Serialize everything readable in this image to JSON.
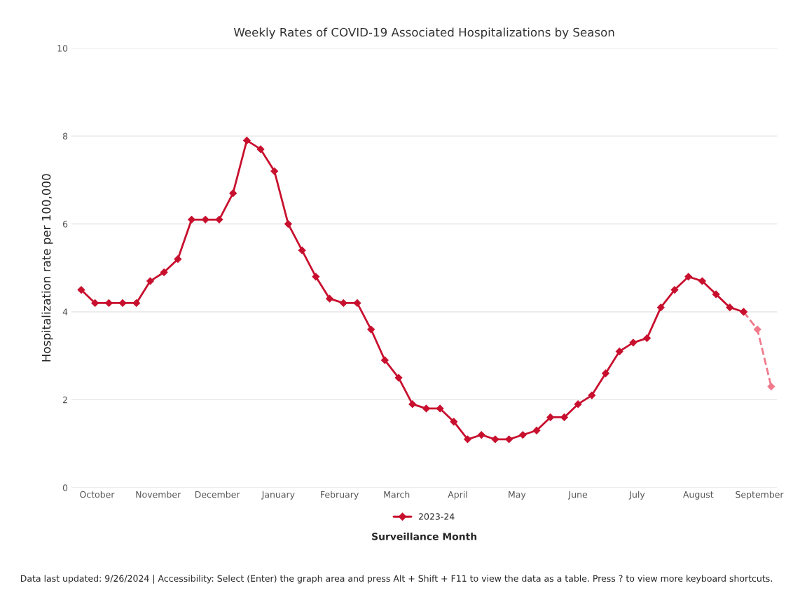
{
  "chart_data": {
    "type": "line",
    "title": "Weekly Rates of COVID-19 Associated Hospitalizations by Season",
    "xlabel": "Surveillance Month",
    "ylabel": "Hospitalization rate per 100,000",
    "series": [
      {
        "name": "2023-24",
        "color": "#c8102e",
        "marker": "diamond",
        "line_style": "solid",
        "x": [
          "2023-10-07",
          "2023-10-14",
          "2023-10-21",
          "2023-10-28",
          "2023-11-04",
          "2023-11-11",
          "2023-11-18",
          "2023-11-25",
          "2023-12-02",
          "2023-12-09",
          "2023-12-16",
          "2023-12-23",
          "2023-12-30",
          "2024-01-06",
          "2024-01-13",
          "2024-01-20",
          "2024-01-27",
          "2024-02-03",
          "2024-02-10",
          "2024-02-17",
          "2024-02-24",
          "2024-03-02",
          "2024-03-09",
          "2024-03-16",
          "2024-03-23",
          "2024-03-30",
          "2024-04-06",
          "2024-04-13",
          "2024-04-20",
          "2024-04-27",
          "2024-05-04",
          "2024-05-11",
          "2024-05-18",
          "2024-05-25",
          "2024-06-01",
          "2024-06-08",
          "2024-06-15",
          "2024-06-22",
          "2024-06-29",
          "2024-07-06",
          "2024-07-13",
          "2024-07-20",
          "2024-07-27",
          "2024-08-03",
          "2024-08-10",
          "2024-08-17",
          "2024-08-24",
          "2024-08-31",
          "2024-09-07"
        ],
        "values": [
          4.5,
          4.2,
          4.2,
          4.2,
          4.2,
          4.7,
          4.9,
          5.2,
          6.1,
          6.1,
          6.1,
          6.7,
          7.9,
          7.7,
          7.2,
          6.0,
          5.4,
          4.8,
          4.3,
          4.2,
          4.2,
          3.6,
          2.9,
          2.5,
          1.9,
          1.8,
          1.8,
          1.5,
          1.1,
          1.2,
          1.1,
          1.1,
          1.2,
          1.3,
          1.6,
          1.6,
          1.9,
          2.1,
          2.6,
          3.1,
          3.3,
          3.4,
          4.1,
          4.5,
          4.8,
          4.7,
          4.4,
          4.1,
          4.0
        ]
      },
      {
        "color": "#f07a8c",
        "marker": "diamond",
        "line_style": "dashed",
        "x": [
          "2024-09-07",
          "2024-09-14",
          "2024-09-21"
        ],
        "values": [
          4.0,
          3.6,
          2.3
        ]
      }
    ],
    "xlim": [
      "2023-10-02",
      "2024-09-24"
    ],
    "xticks": [
      {
        "value": "2023-10-15",
        "label": "October"
      },
      {
        "value": "2023-11-15",
        "label": "November"
      },
      {
        "value": "2023-12-15",
        "label": "December"
      },
      {
        "value": "2024-01-15",
        "label": "January"
      },
      {
        "value": "2024-02-15",
        "label": "February"
      },
      {
        "value": "2024-03-15",
        "label": "March"
      },
      {
        "value": "2024-04-15",
        "label": "April"
      },
      {
        "value": "2024-05-15",
        "label": "May"
      },
      {
        "value": "2024-06-15",
        "label": "June"
      },
      {
        "value": "2024-07-15",
        "label": "July"
      },
      {
        "value": "2024-08-15",
        "label": "August"
      },
      {
        "value": "2024-09-15",
        "label": "September"
      }
    ],
    "ylim": [
      0,
      10
    ],
    "yticks": [
      0,
      2,
      4,
      6,
      8,
      10
    ],
    "grid": "y",
    "legend": "bottom",
    "annotations": [
      "Data last updated: 9/26/2024 | Accessibility: Select (Enter) the graph area and press Alt + Shift + F11 to view the data as a table. Press ? to view more keyboard shortcuts."
    ]
  }
}
